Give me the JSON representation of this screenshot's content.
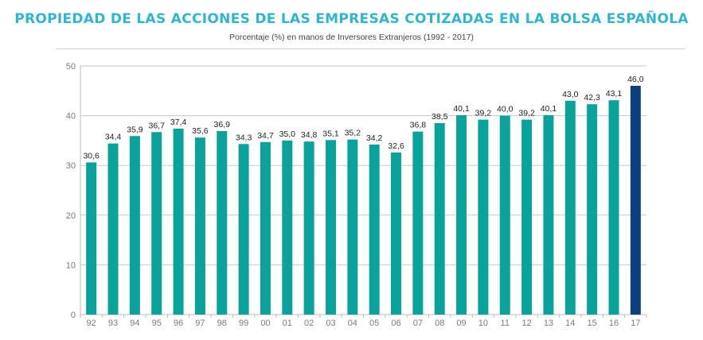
{
  "title": "PROPIEDAD DE LAS ACCIONES DE  LAS EMPRESAS COTIZADAS EN LA BOLSA ESPAÑOLA",
  "subtitle": "Porcentaje (%) en manos de Inversores  Extranjeros (1992 - 2017)",
  "colors": {
    "bar": "#0aa39b",
    "highlight": "#0d3e7e",
    "title": "#2fb6cf"
  },
  "chart_data": {
    "type": "bar",
    "categories": [
      "92",
      "93",
      "94",
      "95",
      "96",
      "97",
      "98",
      "99",
      "00",
      "01",
      "02",
      "03",
      "04",
      "05",
      "06",
      "07",
      "08",
      "09",
      "10",
      "11",
      "12",
      "13",
      "14",
      "15",
      "16",
      "17"
    ],
    "values": [
      30.6,
      34.4,
      35.9,
      36.7,
      37.4,
      35.6,
      36.9,
      34.3,
      34.7,
      35.0,
      34.8,
      35.1,
      35.2,
      34.2,
      32.6,
      36.8,
      38.5,
      40.1,
      39.2,
      40.0,
      39.2,
      40.1,
      43.0,
      42.3,
      43.1,
      46.0
    ],
    "data_labels": [
      "30,6",
      "34,4",
      "35,9",
      "36,7",
      "37,4",
      "35,6",
      "36,9",
      "34,3",
      "34,7",
      "35,0",
      "34,8",
      "35,1",
      "35,2",
      "34,2",
      "32,6",
      "36,8",
      "38,5",
      "40,1",
      "39,2",
      "40,0",
      "39,2",
      "40,1",
      "43,0",
      "42,3",
      "43,1",
      "46,0"
    ],
    "highlight_index": 25,
    "ylim": [
      0,
      50
    ],
    "yticks": [
      0,
      10,
      20,
      30,
      40,
      50
    ],
    "grid": true,
    "xlabel": "",
    "ylabel": ""
  }
}
